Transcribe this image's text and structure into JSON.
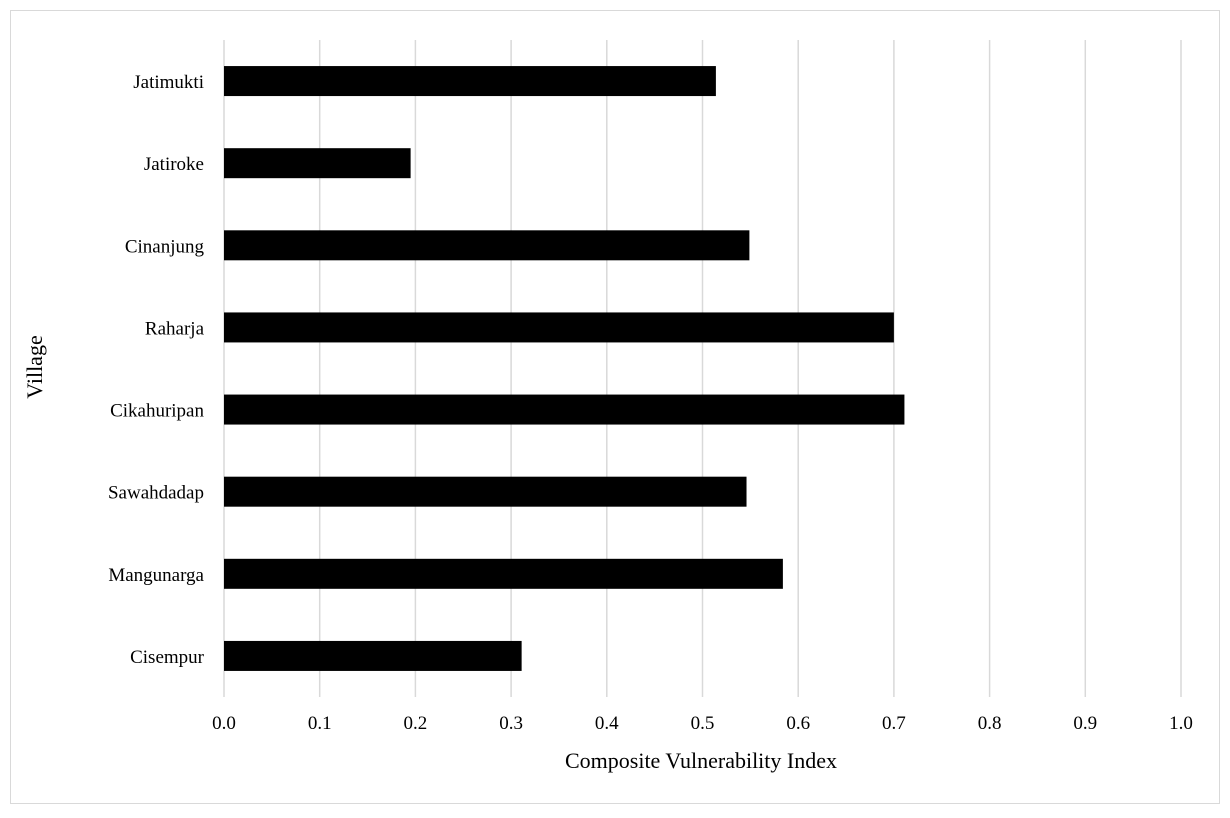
{
  "chart_data": {
    "type": "bar",
    "orientation": "horizontal",
    "categories": [
      "Jatimukti",
      "Jatiroke",
      "Cinanjung",
      "Raharja",
      "Cikahuripan",
      "Sawahdadap",
      "Mangunarga",
      "Cisempur"
    ],
    "values": [
      0.514,
      0.195,
      0.549,
      0.7,
      0.711,
      0.546,
      0.584,
      0.311
    ],
    "xlabel": "Composite Vulnerability Index",
    "ylabel": "Village",
    "xlim": [
      0.0,
      1.0
    ],
    "xticks": [
      "0.0",
      "0.1",
      "0.2",
      "0.3",
      "0.4",
      "0.5",
      "0.6",
      "0.7",
      "0.8",
      "0.9",
      "1.0"
    ],
    "grid": "vertical",
    "bar_color": "#000000",
    "grid_color": "#d9d9d9"
  }
}
